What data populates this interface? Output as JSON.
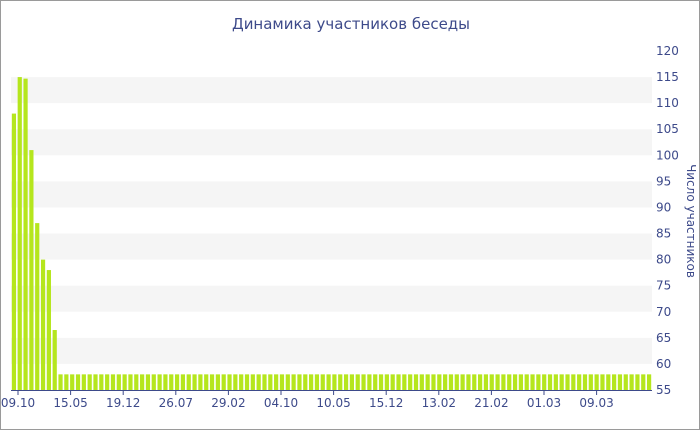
{
  "chart_data": {
    "type": "bar",
    "title": "Динамика участников беседы",
    "ylabel": "Число участников",
    "ylim": [
      55,
      120
    ],
    "yticks": [
      55,
      60,
      65,
      70,
      75,
      80,
      85,
      90,
      95,
      100,
      105,
      110,
      115,
      120
    ],
    "x_tick_labels": [
      "09.10",
      "15.05",
      "19.12",
      "26.07",
      "29.02",
      "04.10",
      "10.05",
      "15.12",
      "13.02",
      "21.02",
      "01.03",
      "09.03"
    ],
    "values": [
      108,
      115,
      114.7,
      101,
      87,
      80,
      78,
      66.5,
      58,
      58,
      58,
      58,
      58,
      58,
      58,
      58,
      58,
      58,
      58,
      58,
      58,
      58,
      58,
      58,
      58,
      58,
      58,
      58,
      58,
      58,
      58,
      58,
      58,
      58,
      58,
      58,
      58,
      58,
      58,
      58,
      58,
      58,
      58,
      58,
      58,
      58,
      58,
      58,
      58,
      58,
      58,
      58,
      58,
      58,
      58,
      58,
      58,
      58,
      58,
      58,
      58,
      58,
      58,
      58,
      58,
      58,
      58,
      58,
      58,
      58,
      58,
      58,
      58,
      58,
      58,
      58,
      58,
      58,
      58,
      58,
      58,
      58,
      58,
      58,
      58,
      58,
      58,
      58,
      58,
      58,
      58,
      58,
      58,
      58,
      58,
      58,
      58,
      58,
      58,
      58,
      58,
      58,
      58,
      58,
      58,
      58,
      58,
      58,
      58,
      58
    ],
    "grid": "horizontal bands",
    "bar_color": "#b5e61d",
    "band_color": "#f5f5f5",
    "text_color": "#3d4a8a"
  }
}
